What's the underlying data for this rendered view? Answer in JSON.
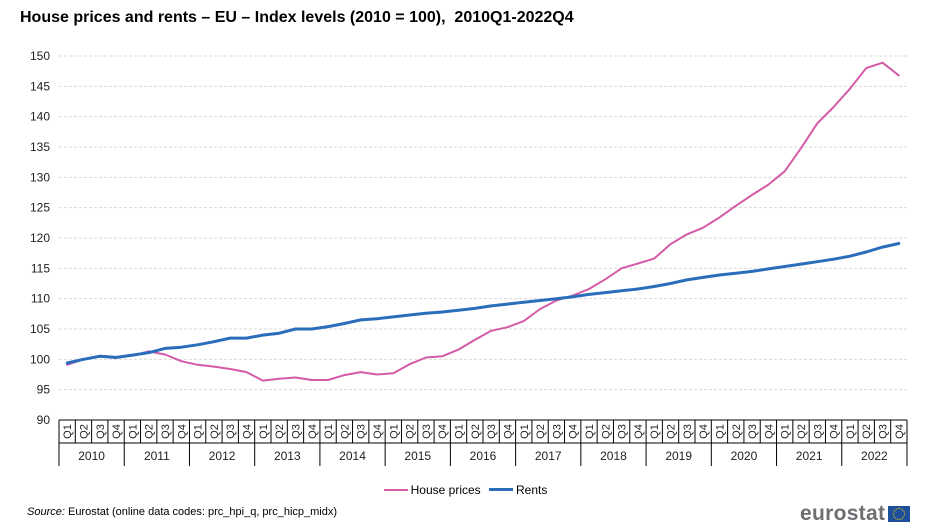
{
  "title": "House prices and rents – EU – Index levels (2010 = 100),  2010Q1-2022Q4",
  "legend": [
    {
      "label": "House prices",
      "color": "#d45ba7"
    },
    {
      "label": "Rents",
      "color": "#2a6ebb"
    }
  ],
  "source": {
    "prefix": "Source:",
    "text": " Eurostat (online data codes: prc_hpi_q, prc_hicp_midx)"
  },
  "logo": {
    "text": "eurostat",
    "flag": "eu-flag-icon"
  },
  "chart_data": {
    "type": "line",
    "title": "House prices and rents – EU – Index levels (2010 = 100),  2010Q1-2022Q4",
    "xlabel": "",
    "ylabel": "",
    "ylim": [
      90,
      150
    ],
    "yticks": [
      90,
      95,
      100,
      105,
      110,
      115,
      120,
      125,
      130,
      135,
      140,
      145,
      150
    ],
    "grid": true,
    "legend_position": "bottom",
    "years": [
      "2010",
      "2011",
      "2012",
      "2013",
      "2014",
      "2015",
      "2016",
      "2017",
      "2018",
      "2019",
      "2020",
      "2021",
      "2022"
    ],
    "quarters": [
      "Q1",
      "Q2",
      "Q3",
      "Q4"
    ],
    "series": [
      {
        "name": "House prices",
        "color": "#d45ba7",
        "values": [
          99.1,
          100.0,
          100.6,
          100.4,
          100.6,
          101.3,
          100.8,
          99.7,
          99.1,
          98.8,
          98.4,
          97.9,
          96.5,
          96.8,
          97.0,
          96.6,
          96.6,
          97.4,
          97.9,
          97.5,
          97.7,
          99.2,
          100.3,
          100.5,
          101.6,
          103.2,
          104.7,
          105.3,
          106.3,
          108.3,
          109.7,
          110.5,
          111.6,
          113.2,
          115.0,
          115.8,
          116.6,
          119.0,
          120.6,
          121.7,
          123.4,
          125.3,
          127.1,
          128.8,
          131.0,
          134.8,
          138.9,
          141.6,
          144.6,
          148.0,
          148.9,
          146.8
        ]
      },
      {
        "name": "Rents",
        "color": "#2a6ebb",
        "values": [
          99.4,
          100.0,
          100.5,
          100.3,
          100.7,
          101.1,
          101.8,
          102.0,
          102.4,
          102.9,
          103.5,
          103.5,
          104.0,
          104.3,
          105.0,
          105.0,
          105.4,
          105.9,
          106.5,
          106.7,
          107.0,
          107.3,
          107.6,
          107.8,
          108.1,
          108.4,
          108.8,
          109.1,
          109.4,
          109.7,
          110.0,
          110.3,
          110.7,
          111.0,
          111.3,
          111.6,
          112.0,
          112.5,
          113.1,
          113.5,
          113.9,
          114.2,
          114.5,
          114.9,
          115.3,
          115.7,
          116.1,
          116.5,
          117.0,
          117.7,
          118.5,
          119.1
        ]
      }
    ]
  }
}
